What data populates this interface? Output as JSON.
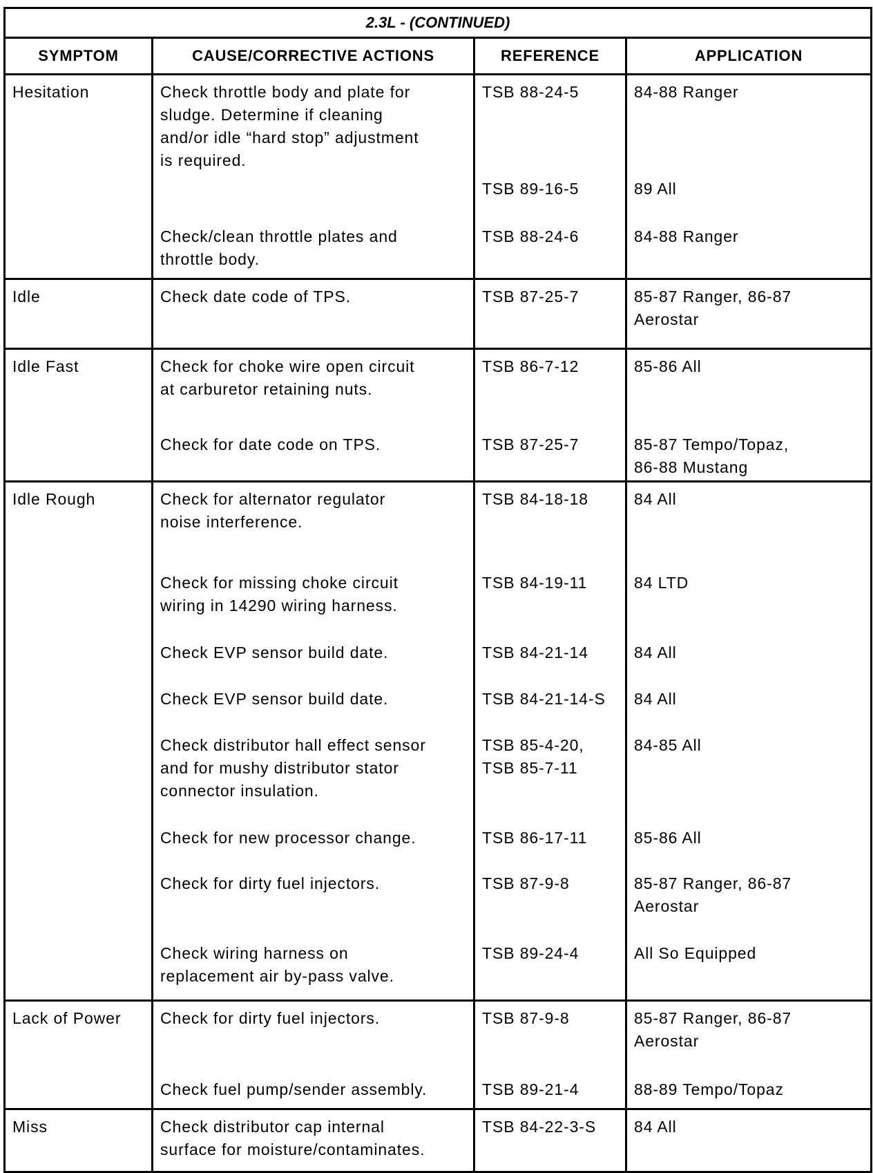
{
  "title": "2.3L - (CONTINUED)",
  "headers": {
    "symptom": "SYMPTOM",
    "cause": "CAUSE/CORRECTIVE ACTIONS",
    "reference": "REFERENCE",
    "application": "APPLICATION"
  },
  "rows": [
    {
      "symptom": "Hesitation",
      "entries": [
        {
          "cause": [
            "Check throttle body and plate for",
            "sludge. Determine if cleaning",
            "and/or idle “hard stop” adjustment",
            "is required."
          ],
          "reference": [
            "TSB 88-24-5"
          ],
          "application": [
            "84-88 Ranger"
          ]
        },
        {
          "cause": [],
          "reference": [
            "TSB 89-16-5"
          ],
          "application": [
            "89 All"
          ]
        },
        {
          "cause": [
            "Check/clean throttle plates and",
            "throttle body."
          ],
          "reference": [
            "TSB 88-24-6"
          ],
          "application": [
            "84-88 Ranger"
          ]
        }
      ]
    },
    {
      "symptom": "Idle",
      "entries": [
        {
          "cause": [
            "Check date code of TPS."
          ],
          "reference": [
            "TSB 87-25-7"
          ],
          "application": [
            "85-87 Ranger, 86-87",
            "Aerostar"
          ]
        }
      ]
    },
    {
      "symptom": "Idle Fast",
      "entries": [
        {
          "cause": [
            "Check for choke wire open circuit",
            "at carburetor retaining nuts."
          ],
          "reference": [
            "TSB 86-7-12"
          ],
          "application": [
            "85-86 All"
          ]
        },
        {
          "cause": [
            "Check for date code on TPS."
          ],
          "reference": [
            "TSB 87-25-7"
          ],
          "application": [
            "85-87 Tempo/Topaz,",
            "86-88 Mustang"
          ]
        }
      ]
    },
    {
      "symptom": "Idle Rough",
      "entries": [
        {
          "cause": [
            "Check for alternator regulator",
            "noise interference."
          ],
          "reference": [
            "TSB 84-18-18"
          ],
          "application": [
            "84 All"
          ]
        },
        {
          "cause": [
            "Check for missing choke circuit",
            "wiring in 14290 wiring harness."
          ],
          "reference": [
            "TSB 84-19-11"
          ],
          "application": [
            "84 LTD"
          ]
        },
        {
          "cause": [
            "Check EVP sensor build date."
          ],
          "reference": [
            "TSB 84-21-14"
          ],
          "application": [
            "84 All"
          ]
        },
        {
          "cause": [
            "Check EVP sensor build date."
          ],
          "reference": [
            "TSB 84-21-14-S"
          ],
          "application": [
            "84 All"
          ]
        },
        {
          "cause": [
            "Check distributor hall effect sensor",
            "and for mushy distributor stator",
            "connector insulation."
          ],
          "reference": [
            "TSB 85-4-20,",
            "TSB 85-7-11"
          ],
          "application": [
            "84-85 All"
          ]
        },
        {
          "cause": [
            "Check for new processor change."
          ],
          "reference": [
            "TSB 86-17-11"
          ],
          "application": [
            "85-86 All"
          ]
        },
        {
          "cause": [
            "Check for dirty fuel injectors."
          ],
          "reference": [
            "TSB 87-9-8"
          ],
          "application": [
            "85-87 Ranger, 86-87",
            "Aerostar"
          ]
        },
        {
          "cause": [
            "Check wiring harness on",
            "replacement air by-pass valve."
          ],
          "reference": [
            "TSB 89-24-4"
          ],
          "application": [
            "All So Equipped"
          ]
        }
      ]
    },
    {
      "symptom": "Lack of Power",
      "entries": [
        {
          "cause": [
            "Check for dirty fuel injectors."
          ],
          "reference": [
            "TSB 87-9-8"
          ],
          "application": [
            "85-87 Ranger, 86-87",
            "Aerostar"
          ]
        },
        {
          "cause": [
            "Check fuel pump/sender assembly."
          ],
          "reference": [
            "TSB 89-21-4"
          ],
          "application": [
            "88-89 Tempo/Topaz"
          ]
        }
      ]
    },
    {
      "symptom": "Miss",
      "entries": [
        {
          "cause": [
            "Check distributor cap internal",
            "surface for moisture/contaminates."
          ],
          "reference": [
            "TSB 84-22-3-S"
          ],
          "application": [
            "84 All"
          ]
        }
      ]
    }
  ]
}
